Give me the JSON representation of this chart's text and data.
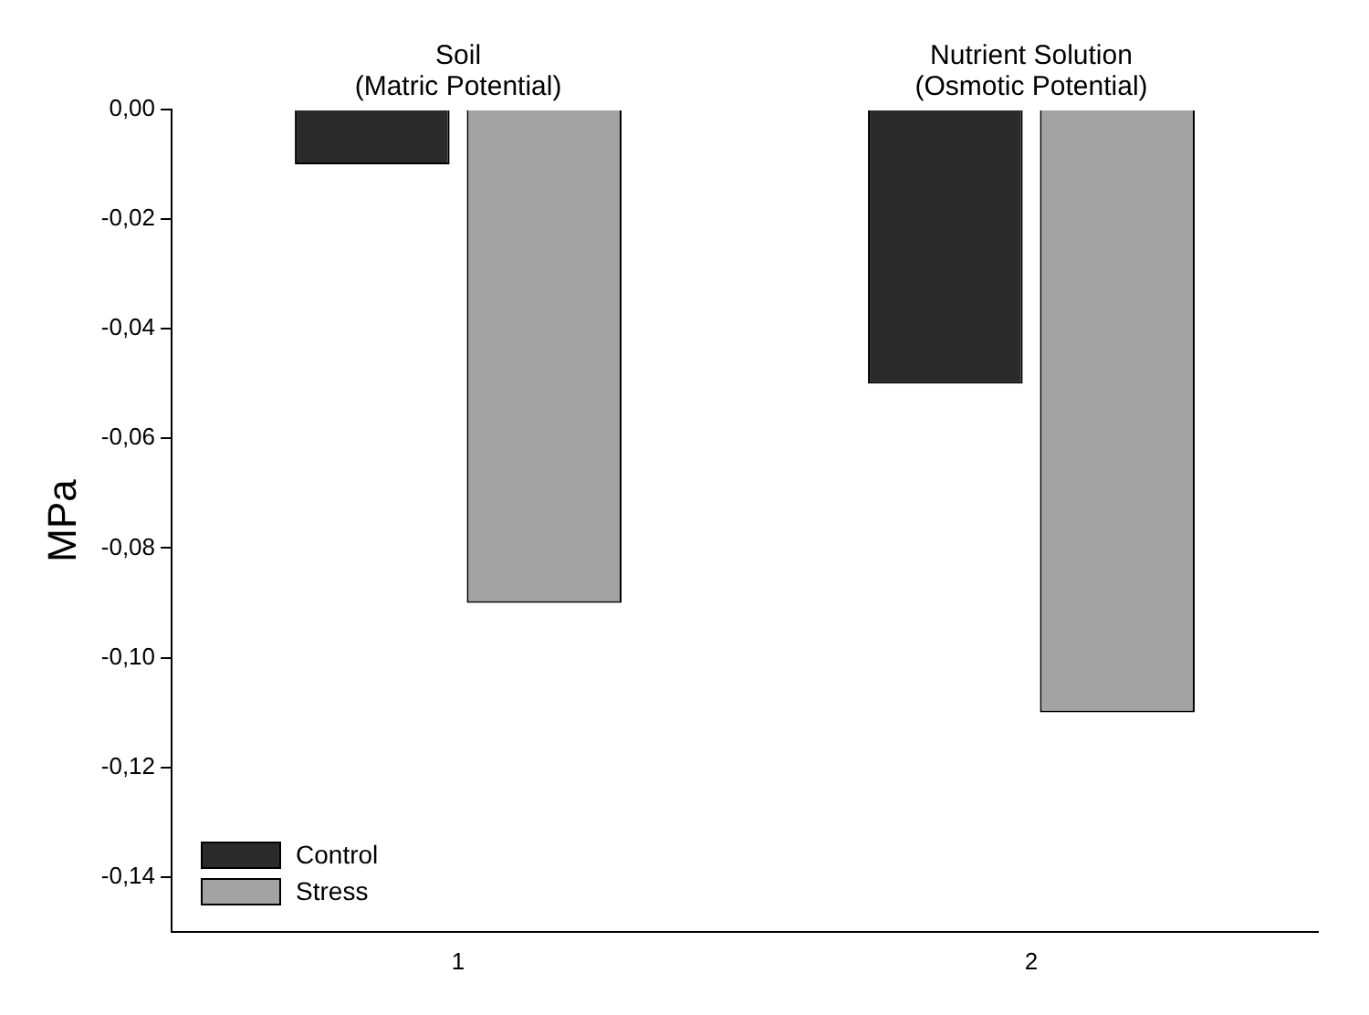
{
  "chart_data": {
    "type": "bar",
    "ylabel": "MPa",
    "categories": [
      "1",
      "2"
    ],
    "series": [
      {
        "name": "Control",
        "color": "#2b2b2b",
        "values": [
          -0.01,
          -0.05
        ]
      },
      {
        "name": "Stress",
        "color": "#a3a3a3",
        "values": [
          -0.09,
          -0.11
        ]
      }
    ],
    "ylim": [
      -0.15,
      0
    ],
    "yticks": [
      {
        "value": 0,
        "label": "0,00"
      },
      {
        "value": -0.02,
        "label": "-0,02"
      },
      {
        "value": -0.04,
        "label": "-0,04"
      },
      {
        "value": -0.06,
        "label": "-0,06"
      },
      {
        "value": -0.08,
        "label": "-0,08"
      },
      {
        "value": -0.1,
        "label": "-0,10"
      },
      {
        "value": -0.12,
        "label": "-0,12"
      },
      {
        "value": -0.14,
        "label": "-0,14"
      }
    ],
    "annotations": [
      "Soil\n(Matric Potential)",
      "Nutrient Solution\n(Osmotic Potential)"
    ],
    "legend": "bottom left",
    "grid": false
  }
}
